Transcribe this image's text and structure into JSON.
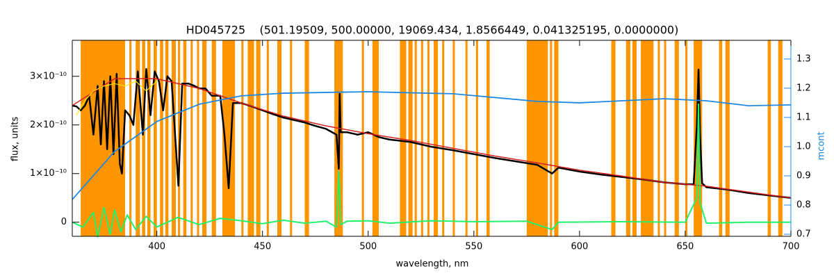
{
  "chart_data": {
    "type": "line",
    "title": "HD045725    (501.19509, 500.00000, 19069.434, 1.8566449, 0.041325195, 0.0000000)",
    "x_label": "wavelength, nm",
    "y_label": "flux, units",
    "y2_label": "mcont",
    "xlim": [
      360,
      700
    ],
    "xticks": [
      400,
      450,
      500,
      550,
      600,
      650,
      700
    ],
    "ylim": [
      -2.9e-11,
      3.74e-10
    ],
    "yticks": [
      0,
      {
        "value": 1e-10,
        "label": "1×10⁻¹⁰"
      },
      {
        "value": 2e-10,
        "label": "2×10⁻¹⁰"
      },
      {
        "value": 3e-10,
        "label": "3×10⁻¹⁰"
      }
    ],
    "y2lim": [
      0.693,
      1.364
    ],
    "y2ticks": [
      0.7,
      0.8,
      0.9,
      {
        "value": 1,
        "label": "1.0"
      },
      1.1,
      1.2,
      1.3
    ],
    "y2_color": "#1e88e5",
    "mask_color": "#ff9500",
    "masked_ranges": [
      [
        364,
        385
      ],
      [
        387,
        388
      ],
      [
        390,
        392
      ],
      [
        393,
        394.5
      ],
      [
        395.5,
        397
      ],
      [
        398.5,
        400
      ],
      [
        401.5,
        403
      ],
      [
        404,
        405.5
      ],
      [
        407,
        409
      ],
      [
        410,
        411
      ],
      [
        412.5,
        414
      ],
      [
        416,
        417
      ],
      [
        419,
        420
      ],
      [
        421.5,
        423.5
      ],
      [
        426,
        428
      ],
      [
        431,
        437
      ],
      [
        440,
        441
      ],
      [
        443,
        446
      ],
      [
        447,
        449
      ],
      [
        452,
        453
      ],
      [
        457,
        459
      ],
      [
        463,
        464
      ],
      [
        470,
        472
      ],
      [
        484,
        488
      ],
      [
        497,
        498
      ],
      [
        502,
        505
      ],
      [
        515,
        518
      ],
      [
        519,
        521
      ],
      [
        522,
        523
      ],
      [
        525,
        526
      ],
      [
        528,
        529
      ],
      [
        531,
        533
      ],
      [
        535,
        536
      ],
      [
        540,
        541
      ],
      [
        546,
        547
      ],
      [
        551,
        552
      ],
      [
        556,
        557.5
      ],
      [
        575,
        585
      ],
      [
        586,
        587
      ],
      [
        588,
        590
      ],
      [
        615,
        617
      ],
      [
        622,
        624
      ],
      [
        625,
        627
      ],
      [
        629,
        635
      ],
      [
        637,
        638
      ],
      [
        640,
        641
      ],
      [
        645,
        647
      ],
      [
        650,
        651
      ],
      [
        654,
        658
      ],
      [
        666,
        667.5
      ],
      [
        669,
        671
      ],
      [
        689,
        690.5
      ],
      [
        694,
        696
      ]
    ],
    "series": [
      {
        "color": "#000000",
        "width": 2.5,
        "x": [
          360,
          362,
          364,
          366,
          368,
          370,
          372,
          373.5,
          375,
          376.5,
          378,
          379.5,
          381,
          382.5,
          383.5,
          385,
          387,
          388.9,
          391,
          393.4,
          395,
          397,
          399,
          401,
          403,
          405,
          407,
          410.2,
          412,
          415,
          418,
          420,
          423,
          426,
          430,
          432,
          434,
          436,
          440,
          445,
          450,
          455,
          460,
          465,
          470,
          475,
          480,
          485,
          486.1,
          486.5,
          487,
          490,
          495,
          500,
          505,
          510,
          520,
          530,
          540,
          550,
          560,
          570,
          580,
          587,
          590,
          600,
          610,
          620,
          630,
          640,
          650,
          654,
          655.5,
          656.3,
          657,
          658,
          660,
          670,
          680,
          690,
          700
        ],
        "values": [
          2.4e-10,
          2.38e-10,
          2.3e-10,
          2.4e-10,
          2.6e-10,
          1.8e-10,
          2.8e-10,
          1.6e-10,
          2.9e-10,
          1.5e-10,
          3e-10,
          1.4e-10,
          3.05e-10,
          1.2e-10,
          1e-10,
          2.3e-10,
          2.2e-10,
          2e-10,
          3.1e-10,
          1.8e-10,
          3.15e-10,
          2.2e-10,
          3.1e-10,
          2.9e-10,
          2.3e-10,
          3e-10,
          2.9e-10,
          7.5e-11,
          2.85e-10,
          2.85e-10,
          2.8e-10,
          2.75e-10,
          2.75e-10,
          2.6e-10,
          2.6e-10,
          1.8e-10,
          7e-11,
          2.45e-10,
          2.45e-10,
          2.38e-10,
          2.3e-10,
          2.22e-10,
          2.15e-10,
          2.1e-10,
          2.05e-10,
          1.98e-10,
          1.92e-10,
          1.8e-10,
          1.1e-10,
          2.64e-10,
          1.85e-10,
          1.85e-10,
          1.8e-10,
          1.85e-10,
          1.75e-10,
          1.7e-10,
          1.65e-10,
          1.55e-10,
          1.48e-10,
          1.4e-10,
          1.32e-10,
          1.25e-10,
          1.18e-10,
          1e-10,
          1.12e-10,
          1.04e-10,
          9.8e-11,
          9.3e-11,
          8.8e-11,
          8.2e-11,
          7.8e-11,
          7.8e-11,
          2e-10,
          3.14e-10,
          1.8e-10,
          8e-11,
          7.2e-11,
          6.7e-11,
          6e-11,
          5.5e-11,
          5e-11
        ]
      },
      {
        "color": "#d62020",
        "width": 1.5,
        "x": [
          360,
          380,
          400,
          420,
          440,
          460,
          480,
          500,
          520,
          540,
          560,
          580,
          600,
          620,
          640,
          660,
          680,
          700
        ],
        "values": [
          2.4e-10,
          2.95e-10,
          2.95e-10,
          2.75e-10,
          2.45e-10,
          2.18e-10,
          1.98e-10,
          1.82e-10,
          1.68e-10,
          1.52e-10,
          1.36e-10,
          1.22e-10,
          1.07e-10,
          9.5e-11,
          8.2e-11,
          7.4e-11,
          6.2e-11,
          5e-11
        ]
      },
      {
        "color": "#ffe600",
        "width": 1.2,
        "x": [
          362,
          366,
          370,
          375,
          380,
          385,
          390,
          395,
          400
        ],
        "values": [
          2.2e-10,
          2.5e-10,
          2.7e-10,
          2.8e-10,
          2.85e-10,
          2.8e-10,
          2.9e-10,
          2.7e-10,
          2.9e-10
        ]
      },
      {
        "color": "#22f06a",
        "width": 2,
        "x": [
          360,
          365,
          370,
          372,
          375,
          378,
          380,
          383,
          386,
          390,
          395,
          400,
          410,
          420,
          430,
          440,
          450,
          460,
          470,
          480,
          485,
          486.1,
          487,
          490,
          500,
          510,
          530,
          550,
          575,
          587,
          590,
          620,
          650,
          655.5,
          656.3,
          657,
          660,
          680,
          700
        ],
        "values": [
          0,
          -1e-11,
          2e-11,
          -3e-11,
          3e-11,
          -2.5e-11,
          2.5e-11,
          -2e-11,
          1.5e-11,
          -1.5e-11,
          1.2e-11,
          -1e-11,
          1e-11,
          -5e-12,
          8e-12,
          3e-12,
          -3e-12,
          4e-12,
          -2e-12,
          2e-12,
          -1e-11,
          1.05e-10,
          -5e-12,
          2e-12,
          3e-12,
          -2e-12,
          3e-12,
          1e-12,
          2e-12,
          -1.5e-11,
          0,
          1e-12,
          0,
          5e-11,
          2.43e-10,
          4e-11,
          -2e-12,
          0,
          0
        ]
      },
      {
        "color": "#1e88e5",
        "width": 1.8,
        "axis": "y2",
        "x": [
          360,
          380,
          400,
          420,
          440,
          460,
          500,
          540,
          580,
          600,
          620,
          640,
          660,
          680,
          700
        ],
        "values": [
          0.819,
          0.983,
          1.086,
          1.145,
          1.174,
          1.183,
          1.188,
          1.181,
          1.155,
          1.15,
          1.157,
          1.164,
          1.157,
          1.14,
          1.143
        ]
      }
    ]
  }
}
